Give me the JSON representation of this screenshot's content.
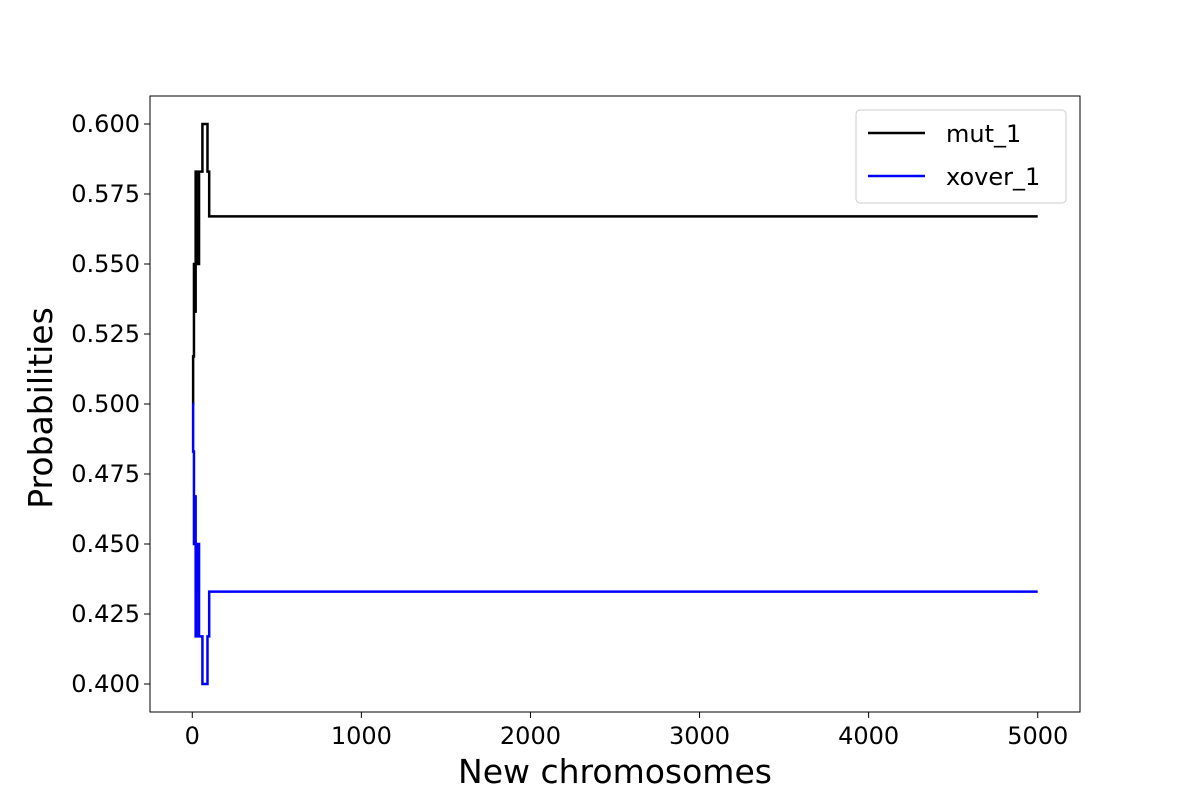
{
  "chart_data": {
    "type": "line",
    "title": "",
    "xlabel": "New chromosomes",
    "ylabel": "Probabilities",
    "xlim": [
      -250,
      5250
    ],
    "ylim": [
      0.39,
      0.61
    ],
    "xticks": [
      0,
      1000,
      2000,
      3000,
      4000,
      5000
    ],
    "xtick_labels": [
      "0",
      "1000",
      "2000",
      "3000",
      "4000",
      "5000"
    ],
    "yticks": [
      0.4,
      0.425,
      0.45,
      0.475,
      0.5,
      0.525,
      0.55,
      0.575,
      0.6
    ],
    "ytick_labels": [
      "0.400",
      "0.425",
      "0.450",
      "0.475",
      "0.500",
      "0.525",
      "0.550",
      "0.575",
      "0.600"
    ],
    "grid": false,
    "legend_position": "top-right",
    "series": [
      {
        "name": "mut_1",
        "color": "#000000",
        "step": true,
        "x": [
          0,
          5,
          10,
          15,
          20,
          25,
          30,
          40,
          60,
          80,
          90,
          100,
          5000
        ],
        "y": [
          0.5,
          0.517,
          0.55,
          0.533,
          0.583,
          0.567,
          0.55,
          0.583,
          0.6,
          0.6,
          0.583,
          0.567,
          0.567
        ]
      },
      {
        "name": "xover_1",
        "color": "#0000ff",
        "step": true,
        "x": [
          0,
          5,
          10,
          15,
          20,
          25,
          30,
          40,
          60,
          80,
          90,
          100,
          5000
        ],
        "y": [
          0.5,
          0.483,
          0.45,
          0.467,
          0.417,
          0.433,
          0.45,
          0.417,
          0.4,
          0.4,
          0.417,
          0.433,
          0.433
        ]
      }
    ]
  }
}
